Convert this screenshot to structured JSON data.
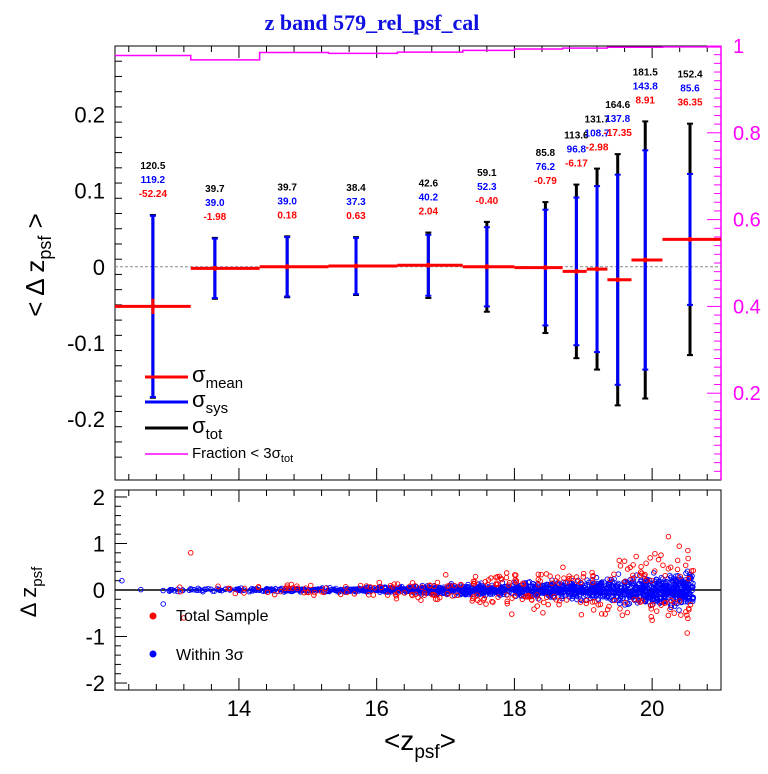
{
  "title": "z band 579_rel_psf_cal",
  "colors": {
    "mean": "#ff0000",
    "sys": "#0000ff",
    "tot": "#000000",
    "fraction": "#ff00ff",
    "title": "#1010e0"
  },
  "chart_data": [
    {
      "type": "errorbar",
      "ylabel": "< Δ z",
      "ylabel_sub": "psf",
      "ylabel_close": " >",
      "xlim": [
        12.2,
        21.0
      ],
      "ylim": [
        -0.28,
        0.29
      ],
      "right_ylim": [
        0.0,
        1.0
      ],
      "yticks": [
        -0.2,
        -0.1,
        0,
        0.1,
        0.2
      ],
      "ytick_labels": [
        "-0.2",
        "-0.1",
        "0",
        "0.1",
        "0.2"
      ],
      "right_yticks": [
        0.2,
        0.4,
        0.6,
        0.8,
        1.0
      ],
      "right_ytick_labels": [
        "0.2",
        "0.4",
        "0.6",
        "0.8",
        "1"
      ],
      "zero_line": true,
      "legend": [
        {
          "symbol": "σ",
          "sub": "mean",
          "color": "#ff0000"
        },
        {
          "symbol": "σ",
          "sub": "sys",
          "color": "#0000ff"
        },
        {
          "symbol": "σ",
          "sub": "tot",
          "color": "#000000"
        },
        {
          "symbol": "Fraction < 3σ",
          "sub": "tot",
          "color": "#ff00ff"
        }
      ],
      "points": [
        {
          "x": 12.75,
          "xlo": 12.2,
          "xhi": 13.3,
          "mean": -0.052,
          "smean": 0.01,
          "ssys": 0.119,
          "stot": 0.12,
          "labels": [
            "120.5",
            "119.2",
            "-52.24"
          ]
        },
        {
          "x": 13.65,
          "xlo": 13.3,
          "xhi": 14.3,
          "mean": -0.002,
          "smean": 0.002,
          "ssys": 0.039,
          "stot": 0.04,
          "labels": [
            "39.7",
            "39.0",
            "-1.98"
          ]
        },
        {
          "x": 14.7,
          "xlo": 14.3,
          "xhi": 15.3,
          "mean": 0.0,
          "smean": 0.001,
          "ssys": 0.039,
          "stot": 0.04,
          "labels": [
            "39.7",
            "39.0",
            "0.18"
          ]
        },
        {
          "x": 15.7,
          "xlo": 15.3,
          "xhi": 16.3,
          "mean": 0.001,
          "smean": 0.001,
          "ssys": 0.037,
          "stot": 0.038,
          "labels": [
            "38.4",
            "37.3",
            "0.63"
          ]
        },
        {
          "x": 16.75,
          "xlo": 16.3,
          "xhi": 17.25,
          "mean": 0.002,
          "smean": 0.001,
          "ssys": 0.04,
          "stot": 0.043,
          "labels": [
            "42.6",
            "40.2",
            "2.04"
          ]
        },
        {
          "x": 17.6,
          "xlo": 17.25,
          "xhi": 18.0,
          "mean": 0.0,
          "smean": 0.001,
          "ssys": 0.052,
          "stot": 0.059,
          "labels": [
            "59.1",
            "52.3",
            "-0.40"
          ]
        },
        {
          "x": 18.45,
          "xlo": 18.0,
          "xhi": 18.7,
          "mean": -0.001,
          "smean": 0.001,
          "ssys": 0.076,
          "stot": 0.086,
          "labels": [
            "85.8",
            "76.2",
            "-0.79"
          ]
        },
        {
          "x": 18.9,
          "xlo": 18.7,
          "xhi": 19.05,
          "mean": -0.006,
          "smean": 0.002,
          "ssys": 0.097,
          "stot": 0.114,
          "labels": [
            "113.6",
            "96.8",
            "-6.17"
          ]
        },
        {
          "x": 19.2,
          "xlo": 19.05,
          "xhi": 19.35,
          "mean": -0.003,
          "smean": 0.002,
          "ssys": 0.109,
          "stot": 0.132,
          "labels": [
            "131.7",
            "108.7",
            "-2.98"
          ]
        },
        {
          "x": 19.5,
          "xlo": 19.35,
          "xhi": 19.7,
          "mean": -0.017,
          "smean": 0.002,
          "ssys": 0.138,
          "stot": 0.165,
          "labels": [
            "164.6",
            "137.8",
            "-17.35"
          ]
        },
        {
          "x": 19.9,
          "xlo": 19.7,
          "xhi": 20.15,
          "mean": 0.009,
          "smean": 0.002,
          "ssys": 0.144,
          "stot": 0.182,
          "labels": [
            "181.5",
            "143.8",
            "8.91"
          ]
        },
        {
          "x": 20.55,
          "xlo": 20.15,
          "xhi": 21.0,
          "mean": 0.036,
          "smean": 0.002,
          "ssys": 0.086,
          "stot": 0.152,
          "labels": [
            "152.4",
            "85.6",
            "36.35"
          ]
        }
      ],
      "fraction": [
        {
          "x0": 12.2,
          "x1": 13.3,
          "v": 0.978
        },
        {
          "x0": 13.3,
          "x1": 14.3,
          "v": 0.968
        },
        {
          "x0": 14.3,
          "x1": 15.3,
          "v": 0.985
        },
        {
          "x0": 15.3,
          "x1": 16.3,
          "v": 0.983
        },
        {
          "x0": 16.3,
          "x1": 17.25,
          "v": 0.986
        },
        {
          "x0": 17.25,
          "x1": 18.0,
          "v": 0.99
        },
        {
          "x0": 18.0,
          "x1": 18.7,
          "v": 0.993
        },
        {
          "x0": 18.7,
          "x1": 19.35,
          "v": 0.995
        },
        {
          "x0": 19.35,
          "x1": 20.15,
          "v": 0.997
        },
        {
          "x0": 20.15,
          "x1": 21.0,
          "v": 0.998
        }
      ]
    },
    {
      "type": "scatter",
      "xlabel": "<z",
      "xlabel_sub": "psf",
      "xlabel_close": ">",
      "ylabel": "Δ z",
      "ylabel_sub": "psf",
      "xlim": [
        12.2,
        21.0
      ],
      "ylim": [
        -2.15,
        2.15
      ],
      "xticks": [
        14,
        16,
        18,
        20
      ],
      "xtick_labels": [
        "14",
        "16",
        "18",
        "20"
      ],
      "yticks": [
        -2,
        -1,
        0,
        1,
        2
      ],
      "ytick_labels": [
        "-2",
        "-1",
        "0",
        "1",
        "2"
      ],
      "zero_line": true,
      "legend": [
        {
          "label": "Total Sample",
          "color": "#ff0000"
        },
        {
          "label": "Within 3σ",
          "color": "#0000ff"
        }
      ],
      "series": [
        {
          "color": "#0000ff",
          "x_range": [
            12.4,
            20.6
          ],
          "spread_min": 0.03,
          "spread_max": 0.36,
          "count": 1500
        },
        {
          "color": "#ff0000",
          "x_range": [
            12.6,
            20.6
          ],
          "spread_min": 0.08,
          "spread_max": 0.7,
          "count": 260
        }
      ],
      "outliers": [
        {
          "x": 12.3,
          "y": 0.2,
          "color": "#0000ff"
        },
        {
          "x": 13.3,
          "y": 0.8,
          "color": "#ff0000"
        },
        {
          "x": 13.2,
          "y": -0.6,
          "color": "#ff0000"
        },
        {
          "x": 12.9,
          "y": -0.3,
          "color": "#0000ff"
        },
        {
          "x": 19.6,
          "y": 0.62,
          "color": "#ff0000"
        },
        {
          "x": 20.0,
          "y": -0.65,
          "color": "#ff0000"
        }
      ]
    }
  ]
}
